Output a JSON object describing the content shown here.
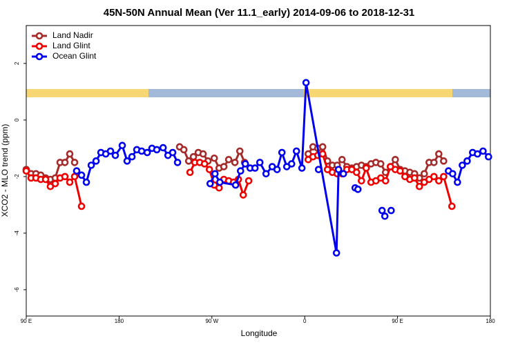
{
  "chart_data": {
    "type": "line",
    "title": "45N-50N Annual Mean (Ver 11.1_early)   2014-09-06 to 2018-12-31",
    "xlabel": "Longitude",
    "ylabel": "XCO2 - MLO trend (ppm)",
    "xlim": [
      90,
      540
    ],
    "ylim": [
      -6.93,
      3.34
    ],
    "xticks": [
      {
        "value": 90,
        "label": "90 E"
      },
      {
        "value": 180,
        "label": "180"
      },
      {
        "value": 270,
        "label": "90 W"
      },
      {
        "value": 360,
        "label": "0"
      },
      {
        "value": 450,
        "label": "90 E"
      },
      {
        "value": 540,
        "label": "180"
      }
    ],
    "yticks": [
      2,
      0,
      -2,
      -4,
      -6
    ],
    "legend": "top-left",
    "series": [
      {
        "name": "Land Nadir",
        "color": "#a52a2a",
        "x": [
          90,
          94.7,
          99.4,
          104.1,
          108.8,
          113.4,
          118.1,
          122.8,
          127.5,
          132.2,
          136.9,
          null,
          238.7,
          242.8,
          247.5,
          252.1,
          256.8,
          261.5,
          266.2,
          272.3,
          277,
          281.6,
          286.3,
          292.3,
          297.1,
          301.7,
          null,
          363.4,
          368,
          372.7,
          377.4,
          382.1,
          386.8,
          391.5,
          396.2,
          400.9,
          405.6,
          410.3,
          415,
          419.6,
          424.3,
          429,
          433.7,
          438.4,
          443.1,
          447.8,
          452.5,
          457.2,
          461.9,
          466.5,
          471.2,
          475.9,
          480.6,
          485.3,
          490,
          494.7
        ],
        "values": [
          -1.75,
          -1.9,
          -1.9,
          -1.95,
          -2.05,
          -2.1,
          -2.05,
          -1.5,
          -1.5,
          -1.2,
          -1.5,
          null,
          -0.95,
          -1.05,
          -1.45,
          -1.3,
          -1.15,
          -1.2,
          -1.45,
          -1.35,
          -1.7,
          -1.65,
          -1.4,
          -1.5,
          -1.1,
          -1.5,
          null,
          -1.2,
          -0.95,
          -1.0,
          -0.95,
          -1.45,
          -1.6,
          -1.6,
          -1.4,
          -1.65,
          -1.7,
          -1.65,
          -1.6,
          -1.65,
          -1.55,
          -1.5,
          -1.55,
          -1.85,
          -1.65,
          -1.4,
          -1.75,
          -1.8,
          -1.85,
          -1.9,
          -2.05,
          -1.9,
          -1.5,
          -1.5,
          -1.2,
          -1.45
        ]
      },
      {
        "name": "Land Glint",
        "color": "#ee0000",
        "x": [
          90,
          94.7,
          99.4,
          104.1,
          108.8,
          113.4,
          118.1,
          122.8,
          127.5,
          132.2,
          136.9,
          143.6,
          null,
          248.8,
          253.5,
          258.2,
          262.9,
          267.6,
          272.3,
          277,
          281.6,
          286.3,
          291,
          295.7,
          300.4,
          305.7,
          null,
          363.4,
          368,
          372.7,
          377.4,
          382.1,
          386.8,
          391.5,
          396.2,
          400.9,
          405.6,
          410.3,
          415,
          419.6,
          424.3,
          429,
          433.7,
          438.4,
          443.1,
          447.8,
          452.5,
          457.2,
          461.9,
          466.5,
          471.2,
          475.9,
          480.6,
          485.3,
          490,
          494.7,
          502.7
        ],
        "values": [
          -1.8,
          -2.05,
          -2.05,
          -2.1,
          -2.1,
          -2.35,
          -2.25,
          -2.05,
          -2.0,
          -2.2,
          -2.0,
          -3.05,
          null,
          -1.85,
          -1.5,
          -1.5,
          -1.55,
          -1.75,
          -2.3,
          -2.4,
          -2.1,
          -2.15,
          -2.2,
          -2.1,
          -2.65,
          -2.15,
          null,
          -1.4,
          -1.3,
          -1.25,
          -1.2,
          -1.75,
          -1.85,
          -1.9,
          -1.9,
          -1.75,
          -1.75,
          -1.85,
          -2.15,
          -1.7,
          -2.2,
          -2.15,
          -2.05,
          -2.15,
          -1.65,
          -1.75,
          -1.8,
          -2.0,
          -2.1,
          -2.05,
          -2.35,
          -2.2,
          -2.1,
          -2.0,
          -2.15,
          -2.0,
          -3.05
        ]
      },
      {
        "name": "Ocean Glint",
        "color": "#0000ee",
        "x": [
          138.9,
          143.6,
          148.3,
          153,
          157.7,
          162.4,
          167.1,
          171.7,
          176.4,
          183.1,
          187.8,
          192.5,
          197.2,
          201.9,
          207.3,
          211.9,
          216.6,
          222.7,
          227.4,
          232,
          236.7,
          null,
          268.3,
          273,
          277.7,
          293,
          297.8,
          302.4,
          307.1,
          311.8,
          316.5,
          322.5,
          328.5,
          333.2,
          337.9,
          342.6,
          347.3,
          352,
          357.3,
          361.3,
          390.8,
          392.8,
          397.5,
          null,
          373.4,
          null,
          408.9,
          411.6,
          null,
          435,
          437.7,
          null,
          443.8,
          null,
          499.4,
          503.4,
          508.1,
          512.8,
          517.5,
          522.8,
          527.5,
          532.9,
          538.2
        ],
        "values": [
          -1.8,
          -1.95,
          -2.2,
          -1.6,
          -1.45,
          -1.15,
          -1.2,
          -1.1,
          -1.25,
          -0.9,
          -1.45,
          -1.3,
          -1.05,
          -1.1,
          -1.15,
          -1.0,
          -1.05,
          -0.98,
          -1.25,
          -1.15,
          -1.5,
          null,
          -2.25,
          -1.9,
          -2.2,
          -2.3,
          -1.8,
          -1.55,
          -1.7,
          -1.7,
          -1.5,
          -1.9,
          -1.65,
          -1.75,
          -1.15,
          -1.65,
          -1.55,
          -1.1,
          -1.7,
          1.32,
          -4.7,
          -1.75,
          -1.9,
          null,
          -1.75,
          null,
          -2.4,
          -2.45,
          null,
          -3.2,
          -3.4,
          null,
          -3.2,
          null,
          -1.8,
          -1.9,
          -2.2,
          -1.6,
          -1.45,
          -1.15,
          -1.2,
          -1.1,
          -1.3
        ]
      }
    ]
  }
}
